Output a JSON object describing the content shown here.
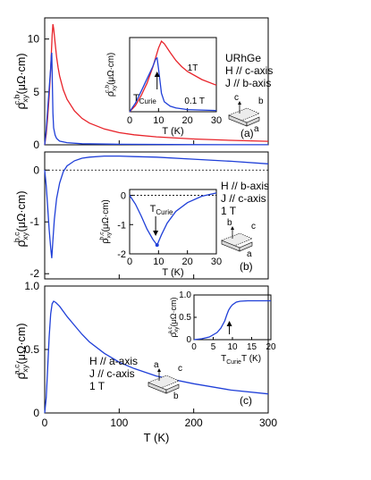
{
  "chart_data": [
    {
      "id": "a",
      "type": "line",
      "panel_label": "(a)",
      "xlabel": "",
      "ylabel": "ρxyc,b (μΩ·cm)",
      "ylabel_main": "ρ",
      "ylabel_sub": "xy",
      "ylabel_sup": "c,b",
      "ylabel_unit": "(μΩ·cm)",
      "xlim": [
        0,
        300
      ],
      "ylim": [
        0,
        12
      ],
      "yticks": [
        0,
        5,
        10
      ],
      "series": [
        {
          "name": "1 T",
          "color": "#e8232a",
          "x": [
            0,
            2,
            4,
            6,
            8,
            10,
            11,
            12,
            14,
            16,
            18,
            20,
            25,
            30,
            40,
            50,
            60,
            80,
            100,
            120,
            150,
            200,
            250,
            300
          ],
          "y": [
            0,
            1.0,
            2.6,
            4.6,
            7.2,
            10.3,
            11.4,
            11.0,
            9.6,
            8.3,
            7.3,
            6.5,
            5.2,
            4.3,
            3.2,
            2.5,
            2.05,
            1.5,
            1.15,
            0.95,
            0.75,
            0.55,
            0.42,
            0.33
          ]
        },
        {
          "name": "0.1 T",
          "color": "#1f3fd8",
          "x": [
            0,
            2,
            4,
            6,
            8,
            9,
            9.5,
            10,
            11,
            12,
            14,
            16,
            20,
            30,
            50,
            100,
            200,
            300
          ],
          "y": [
            0,
            1.4,
            3.3,
            5.3,
            7.3,
            8.5,
            8.7,
            7.0,
            3.0,
            1.6,
            0.9,
            0.6,
            0.35,
            0.2,
            0.1,
            0.05,
            0.02,
            0.01
          ]
        }
      ],
      "annotations": [
        "URhGe",
        "H // c-axis",
        "J // b-axis"
      ],
      "inset": {
        "xlabel": "T (K)",
        "ylabel_main": "ρ",
        "ylabel_sub": "xy",
        "ylabel_sup": "c,b",
        "ylabel_unit": "(μΩ·cm)",
        "xlim": [
          0,
          30
        ],
        "ylim": [
          0,
          12
        ],
        "xticks": [
          0,
          10,
          20,
          30
        ],
        "series_labels": [
          "1T",
          "0.1 T"
        ],
        "marker_main": "T",
        "marker_sub": "Curie"
      },
      "axis_diagram": {
        "labels": [
          "c",
          "b",
          "a"
        ]
      }
    },
    {
      "id": "b",
      "type": "line",
      "panel_label": "(b)",
      "xlabel": "",
      "ylabel_main": "ρ",
      "ylabel_sub": "xy",
      "ylabel_sup": "b,c",
      "ylabel_unit": "(μΩ·cm)",
      "xlim": [
        0,
        300
      ],
      "ylim": [
        -2.1,
        0.35
      ],
      "yticks": [
        -2,
        -1,
        0
      ],
      "series": [
        {
          "color": "#1f3fd8",
          "x": [
            0,
            2,
            4,
            6,
            8,
            9.5,
            11,
            13,
            16,
            20,
            25,
            30,
            40,
            50,
            60,
            80,
            100,
            120,
            150,
            200,
            250,
            300
          ],
          "y": [
            0,
            -0.3,
            -0.7,
            -1.15,
            -1.5,
            -1.7,
            -1.35,
            -0.95,
            -0.55,
            -0.25,
            -0.03,
            0.08,
            0.18,
            0.23,
            0.25,
            0.27,
            0.27,
            0.26,
            0.25,
            0.21,
            0.17,
            0.12
          ]
        }
      ],
      "annotations": [
        "H // b-axis",
        "J // c-axis",
        "1 T"
      ],
      "inset": {
        "xlabel": "T (K)",
        "ylabel_main": "ρ",
        "ylabel_sub": "xy",
        "ylabel_sup": "b,c",
        "ylabel_unit": "(μΩ·cm)",
        "xlim": [
          0,
          30
        ],
        "ylim": [
          -2,
          0.2
        ],
        "xticks": [
          0,
          10,
          20,
          30
        ],
        "yticks": [
          -2,
          -1,
          0
        ],
        "marker_main": "T",
        "marker_sub": "Curie"
      },
      "axis_diagram": {
        "labels": [
          "b",
          "c",
          "a"
        ]
      }
    },
    {
      "id": "c",
      "type": "line",
      "panel_label": "(c)",
      "xlabel": "T (K)",
      "ylabel_main": "ρ",
      "ylabel_sub": "xy",
      "ylabel_sup": "a,c",
      "ylabel_unit": "(μΩ·cm)",
      "xlim": [
        0,
        300
      ],
      "ylim": [
        0,
        1.0
      ],
      "xticks": [
        0,
        100,
        200,
        300
      ],
      "yticks": [
        0,
        0.5,
        1.0
      ],
      "ytick_labels": [
        "0",
        "0.5",
        "1.0"
      ],
      "series": [
        {
          "color": "#1f3fd8",
          "x": [
            0,
            2,
            4,
            6,
            8,
            10,
            12,
            15,
            20,
            30,
            40,
            50,
            60,
            80,
            100,
            120,
            150,
            200,
            250,
            300
          ],
          "y": [
            0,
            0.12,
            0.35,
            0.6,
            0.78,
            0.86,
            0.88,
            0.87,
            0.84,
            0.76,
            0.69,
            0.62,
            0.56,
            0.47,
            0.4,
            0.35,
            0.29,
            0.23,
            0.18,
            0.15
          ]
        }
      ],
      "annotations": [
        "H // a-axis",
        "J // c-axis",
        "1 T"
      ],
      "inset": {
        "xlabel": "T (K)",
        "ylabel_main": "ρ",
        "ylabel_sub": "xy",
        "ylabel_sup": "a,c",
        "ylabel_unit": "(μΩ·cm)",
        "xlim": [
          0,
          20
        ],
        "ylim": [
          0,
          1.0
        ],
        "xticks": [
          0,
          5,
          10,
          15,
          20
        ],
        "yticks": [
          0,
          0.5,
          1.0
        ],
        "ytick_labels": [
          "0",
          "0.5",
          "1.0"
        ],
        "marker_main": "T",
        "marker_sub": "Curie"
      },
      "axis_diagram": {
        "labels": [
          "a",
          "c",
          "b"
        ]
      }
    }
  ]
}
